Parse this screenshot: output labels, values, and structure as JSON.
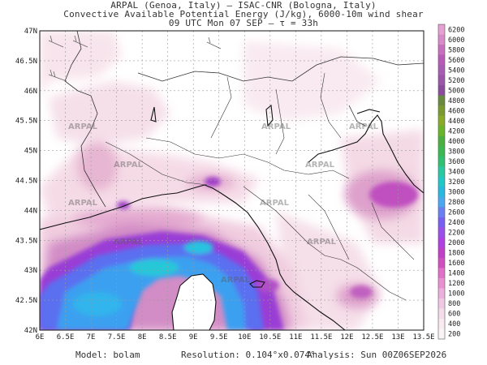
{
  "header": {
    "line1": "ARPAL (Genoa, Italy)  –  ISAC-CNR (Bologna, Italy)",
    "line2": "Convective Available Potential Energy (J/kg), 6000-10m wind shear",
    "line3": "09 UTC Mon 07 SEP  –  τ = 33h"
  },
  "map": {
    "lat_labels": [
      "47N",
      "46.5N",
      "46N",
      "45.5N",
      "45N",
      "44.5N",
      "44N",
      "43.5N",
      "43N",
      "42.5N",
      "42N"
    ],
    "lon_labels": [
      "6E",
      "6.5E",
      "7E",
      "7.5E",
      "8E",
      "8.5E",
      "9E",
      "9.5E",
      "10E",
      "10.5E",
      "11E",
      "11.5E",
      "12E",
      "12.5E",
      "13E",
      "13.5E"
    ],
    "watermark": "ARPAL",
    "colors": {
      "land": "#ffffff",
      "sea": "#ffffff",
      "low_cape": "#f6e4ea",
      "mid_cape": "#e6b0d4",
      "high_cape": "#b03ac0",
      "very_high": "#6a4cf0",
      "max": "#20c8e6"
    }
  },
  "colorbar": {
    "levels": [
      "6200",
      "6000",
      "5800",
      "5600",
      "5400",
      "5200",
      "5000",
      "4800",
      "4600",
      "4400",
      "4200",
      "4000",
      "3800",
      "3600",
      "3400",
      "3200",
      "3000",
      "2800",
      "2600",
      "2400",
      "2200",
      "2000",
      "1800",
      "1600",
      "1400",
      "1200",
      "1000",
      "800",
      "600",
      "400",
      "200"
    ],
    "colors": [
      "#e6a0d2",
      "#d98ac8",
      "#c870c0",
      "#b85cb8",
      "#a85cb4",
      "#9c56a8",
      "#8c4c9c",
      "#6a8a40",
      "#7a9a30",
      "#8aaa2a",
      "#6ab42a",
      "#4cb040",
      "#3cb850",
      "#30c070",
      "#2ac8a0",
      "#22c8c8",
      "#28b8e0",
      "#4aa8f0",
      "#6a80f0",
      "#7a60f0",
      "#9a50e8",
      "#b040e0",
      "#c040c8",
      "#d050c0",
      "#e070c8",
      "#e890d0",
      "#ecb0dc",
      "#f0c8e4",
      "#f4dcea",
      "#f8eaf0",
      "#fbf4f6"
    ]
  },
  "footer": {
    "model": "Model: bolam",
    "resolution": "Resolution: 0.104°x0.074°",
    "analysis": "Analysis: Sun 00Z06SEP2026"
  }
}
